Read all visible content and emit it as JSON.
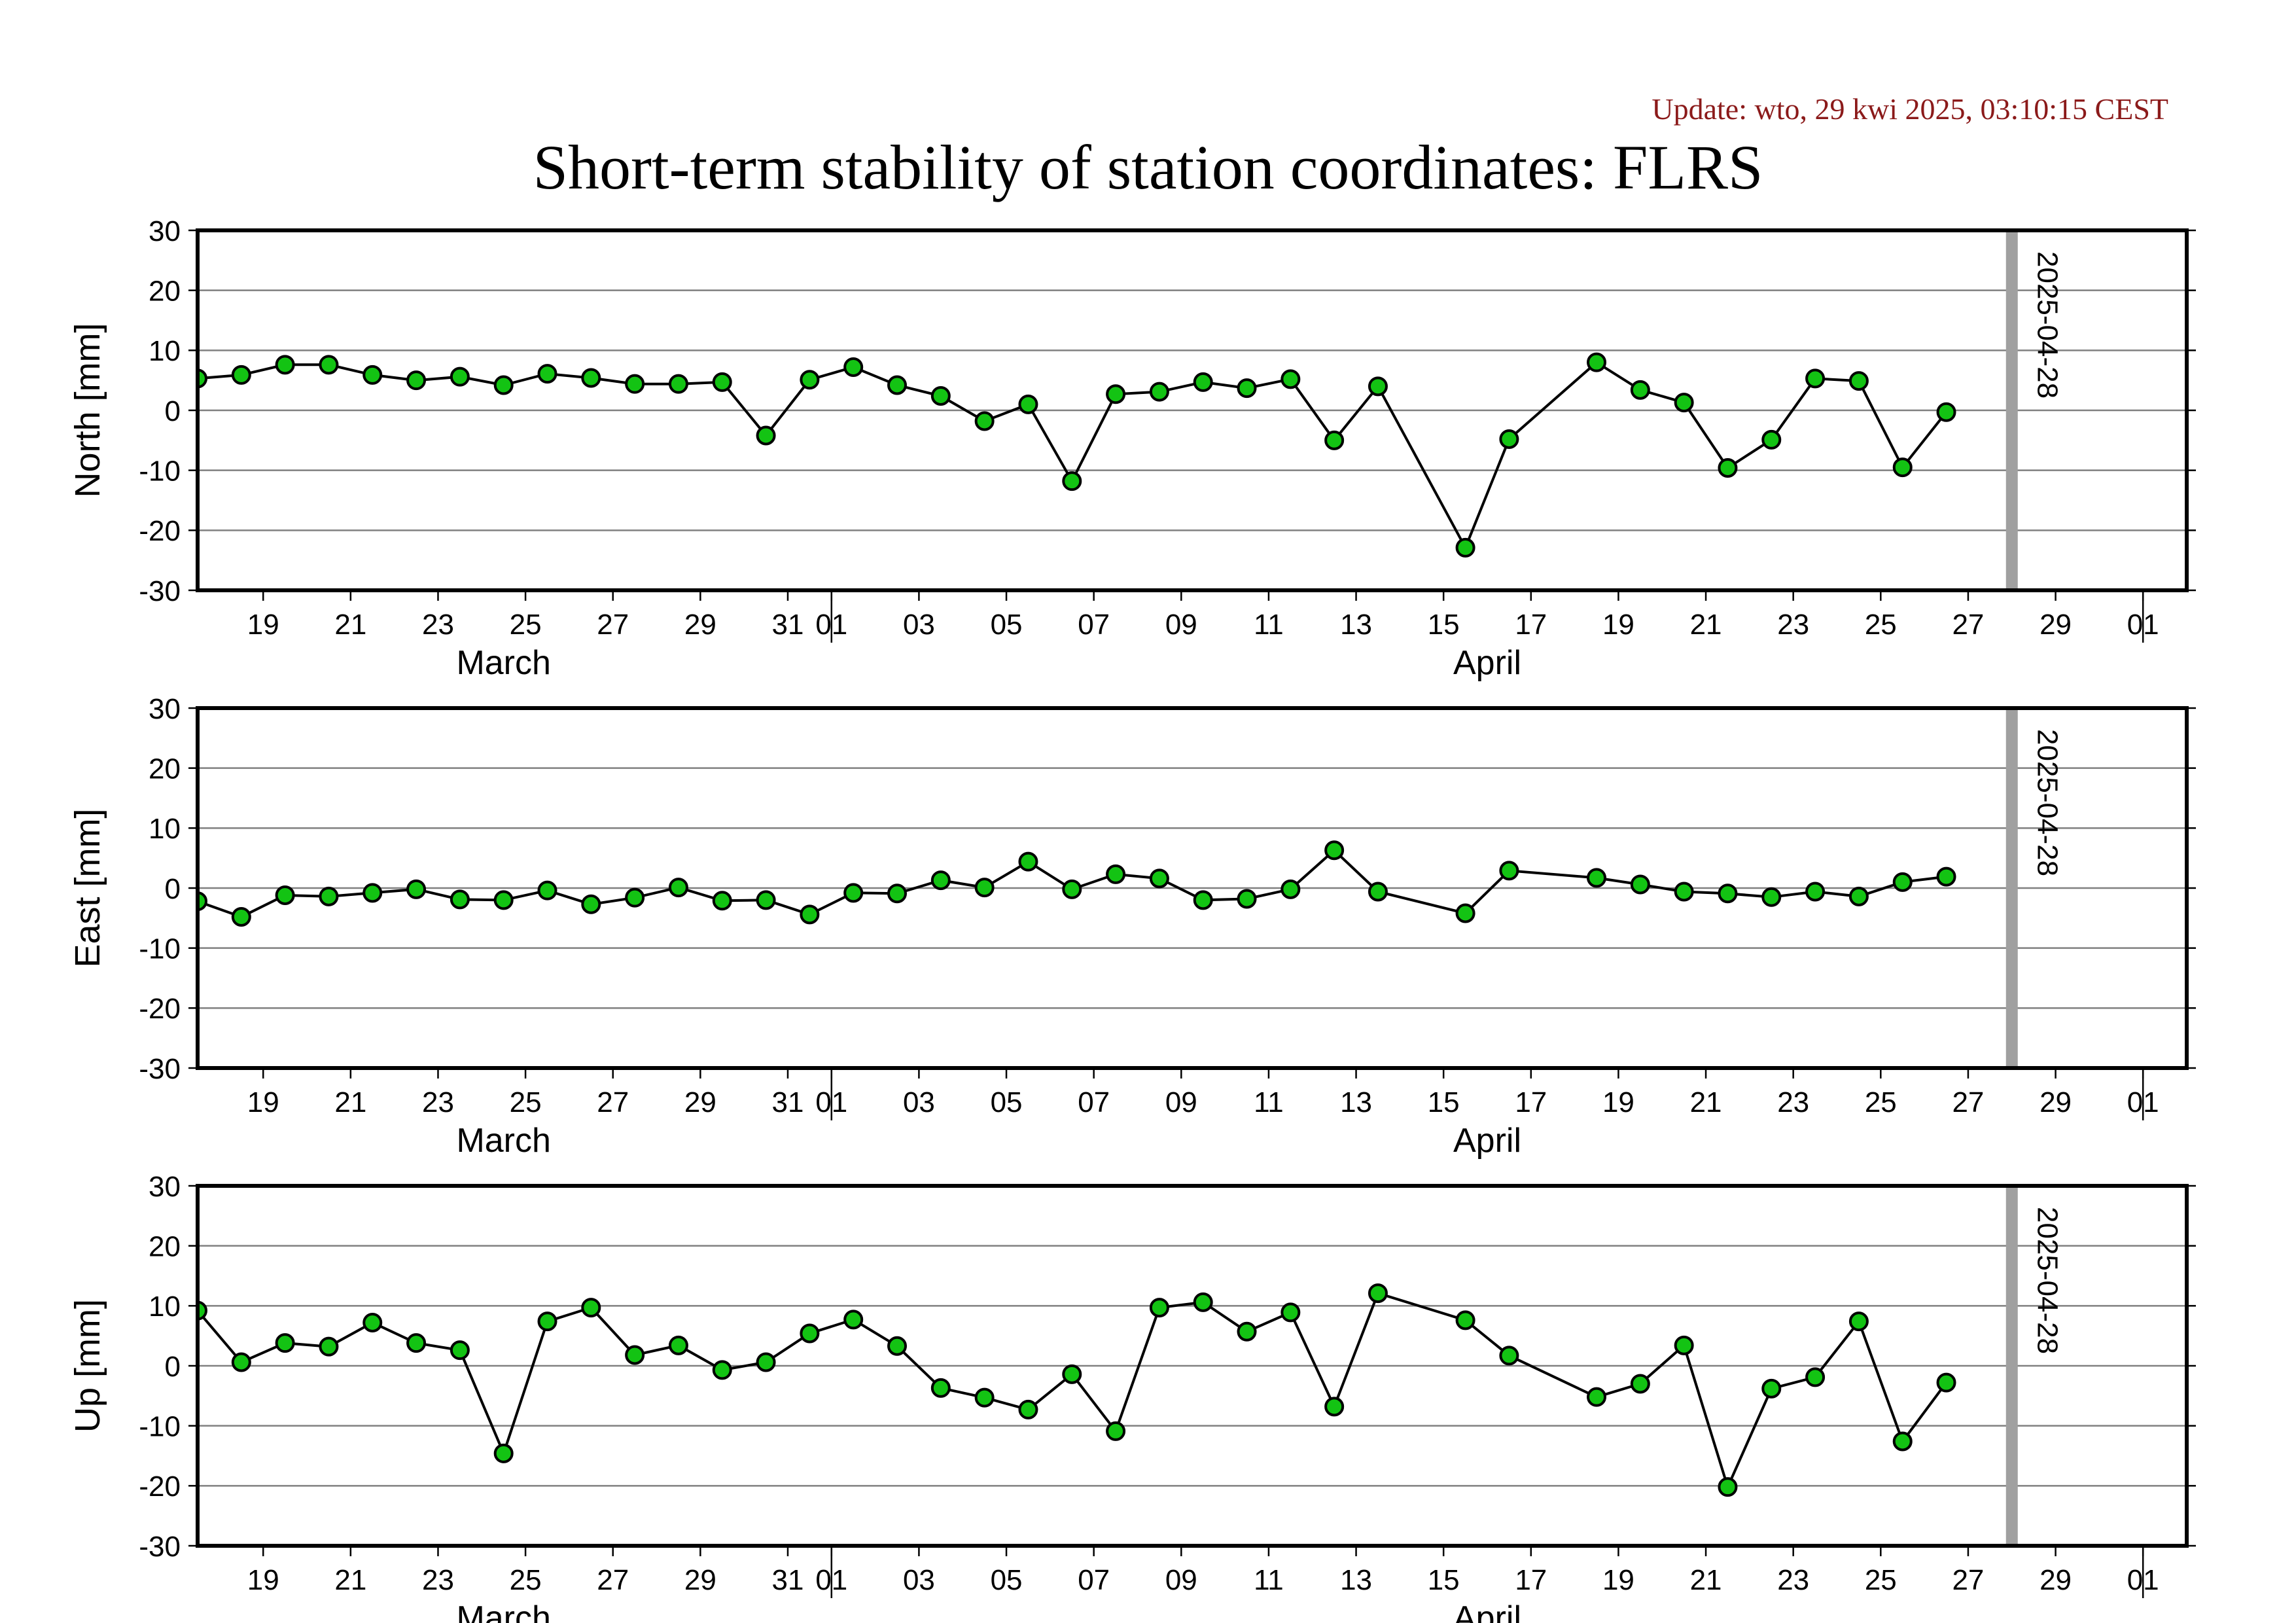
{
  "header": {
    "update": "Update: wto, 29 kwi 2025, 03:10:15 CEST",
    "title": "Short-term stability of station coordinates: FLRS"
  },
  "colors": {
    "update_text": "#8b1a1a",
    "marker_fill": "#13c313",
    "marker_stroke": "#000000",
    "line": "#000000",
    "grid": "#808080",
    "frame": "#000000",
    "reference_line": "#a0a0a0"
  },
  "chart_data": [
    {
      "type": "line",
      "ylabel": "North [mm]",
      "ylim": [
        -30,
        30
      ],
      "yticks": [
        -30,
        -20,
        -10,
        0,
        10,
        20,
        30
      ],
      "xlim": [
        "2025-03-17T12:00",
        "2025-05-02"
      ],
      "x_tick_dates": [
        "2025-03-19",
        "2025-03-21",
        "2025-03-23",
        "2025-03-25",
        "2025-03-27",
        "2025-03-29",
        "2025-03-31",
        "2025-04-01",
        "2025-04-03",
        "2025-04-05",
        "2025-04-07",
        "2025-04-09",
        "2025-04-11",
        "2025-04-13",
        "2025-04-15",
        "2025-04-17",
        "2025-04-19",
        "2025-04-21",
        "2025-04-23",
        "2025-04-25",
        "2025-04-27",
        "2025-04-29",
        "2025-05-01"
      ],
      "x_tick_labels": [
        "19",
        "21",
        "23",
        "25",
        "27",
        "29",
        "31",
        "01",
        "03",
        "05",
        "07",
        "09",
        "11",
        "13",
        "15",
        "17",
        "19",
        "21",
        "23",
        "25",
        "27",
        "29",
        "01"
      ],
      "month_labels": [
        {
          "date": "2025-03-24T12:00",
          "text": "March"
        },
        {
          "date": "2025-04-16",
          "text": "April"
        }
      ],
      "month_boundaries": [
        "2025-04-01",
        "2025-05-01"
      ],
      "reference_line": {
        "date": "2025-04-28",
        "label": "2025-04-28"
      },
      "grid": true,
      "series": [
        {
          "x": [
            "2025-03-17T12:00",
            "2025-03-18T12:00",
            "2025-03-19T12:00",
            "2025-03-20T12:00",
            "2025-03-21T12:00",
            "2025-03-22T12:00",
            "2025-03-23T12:00",
            "2025-03-24T12:00",
            "2025-03-25T12:00",
            "2025-03-26T12:00",
            "2025-03-27T12:00",
            "2025-03-28T12:00",
            "2025-03-29T12:00",
            "2025-03-30T12:00",
            "2025-03-31T12:00",
            "2025-04-01T12:00",
            "2025-04-02T12:00",
            "2025-04-03T12:00",
            "2025-04-04T12:00",
            "2025-04-05T12:00",
            "2025-04-06T12:00",
            "2025-04-07T12:00",
            "2025-04-08T12:00",
            "2025-04-09T12:00",
            "2025-04-10T12:00",
            "2025-04-11T12:00",
            "2025-04-12T12:00",
            "2025-04-13T12:00",
            "2025-04-15T12:00",
            "2025-04-16T12:00",
            "2025-04-18T12:00",
            "2025-04-19T12:00",
            "2025-04-20T12:00",
            "2025-04-21T12:00",
            "2025-04-22T12:00",
            "2025-04-23T12:00",
            "2025-04-24T12:00",
            "2025-04-25T12:00",
            "2025-04-26T12:00"
          ],
          "y": [
            5.3,
            5.9,
            7.6,
            7.6,
            5.9,
            5.0,
            5.6,
            4.2,
            6.1,
            5.4,
            4.4,
            4.4,
            4.7,
            -4.2,
            5.1,
            7.2,
            4.2,
            2.4,
            -1.8,
            1.0,
            -11.8,
            2.7,
            3.1,
            4.7,
            3.7,
            5.2,
            -5.0,
            4.0,
            -22.9,
            -4.8,
            8.0,
            3.4,
            1.3,
            -9.6,
            -4.9,
            5.3,
            4.9,
            -9.5,
            -0.3
          ]
        }
      ]
    },
    {
      "type": "line",
      "ylabel": "East [mm]",
      "ylim": [
        -30,
        30
      ],
      "yticks": [
        -30,
        -20,
        -10,
        0,
        10,
        20,
        30
      ],
      "xlim": [
        "2025-03-17T12:00",
        "2025-05-02"
      ],
      "x_tick_dates": [
        "2025-03-19",
        "2025-03-21",
        "2025-03-23",
        "2025-03-25",
        "2025-03-27",
        "2025-03-29",
        "2025-03-31",
        "2025-04-01",
        "2025-04-03",
        "2025-04-05",
        "2025-04-07",
        "2025-04-09",
        "2025-04-11",
        "2025-04-13",
        "2025-04-15",
        "2025-04-17",
        "2025-04-19",
        "2025-04-21",
        "2025-04-23",
        "2025-04-25",
        "2025-04-27",
        "2025-04-29",
        "2025-05-01"
      ],
      "x_tick_labels": [
        "19",
        "21",
        "23",
        "25",
        "27",
        "29",
        "31",
        "01",
        "03",
        "05",
        "07",
        "09",
        "11",
        "13",
        "15",
        "17",
        "19",
        "21",
        "23",
        "25",
        "27",
        "29",
        "01"
      ],
      "month_labels": [
        {
          "date": "2025-03-24T12:00",
          "text": "March"
        },
        {
          "date": "2025-04-16",
          "text": "April"
        }
      ],
      "month_boundaries": [
        "2025-04-01",
        "2025-05-01"
      ],
      "reference_line": {
        "date": "2025-04-28",
        "label": "2025-04-28"
      },
      "grid": true,
      "series": [
        {
          "x": [
            "2025-03-17T12:00",
            "2025-03-18T12:00",
            "2025-03-19T12:00",
            "2025-03-20T12:00",
            "2025-03-21T12:00",
            "2025-03-22T12:00",
            "2025-03-23T12:00",
            "2025-03-24T12:00",
            "2025-03-25T12:00",
            "2025-03-26T12:00",
            "2025-03-27T12:00",
            "2025-03-28T12:00",
            "2025-03-29T12:00",
            "2025-03-30T12:00",
            "2025-03-31T12:00",
            "2025-04-01T12:00",
            "2025-04-02T12:00",
            "2025-04-03T12:00",
            "2025-04-04T12:00",
            "2025-04-05T12:00",
            "2025-04-06T12:00",
            "2025-04-07T12:00",
            "2025-04-08T12:00",
            "2025-04-09T12:00",
            "2025-04-10T12:00",
            "2025-04-11T12:00",
            "2025-04-12T12:00",
            "2025-04-13T12:00",
            "2025-04-15T12:00",
            "2025-04-16T12:00",
            "2025-04-18T12:00",
            "2025-04-19T12:00",
            "2025-04-20T12:00",
            "2025-04-21T12:00",
            "2025-04-22T12:00",
            "2025-04-23T12:00",
            "2025-04-24T12:00",
            "2025-04-25T12:00",
            "2025-04-26T12:00"
          ],
          "y": [
            -2.2,
            -4.8,
            -1.2,
            -1.4,
            -0.8,
            -0.2,
            -1.9,
            -2.0,
            -0.4,
            -2.7,
            -1.6,
            0.1,
            -2.1,
            -2.0,
            -4.4,
            -0.8,
            -0.9,
            1.3,
            0.1,
            4.4,
            -0.2,
            2.3,
            1.6,
            -2.0,
            -1.8,
            -0.2,
            6.3,
            -0.6,
            -4.2,
            2.9,
            1.7,
            0.6,
            -0.6,
            -0.9,
            -1.5,
            -0.6,
            -1.4,
            1.0,
            1.9
          ]
        }
      ]
    },
    {
      "type": "line",
      "ylabel": "Up [mm]",
      "ylim": [
        -30,
        30
      ],
      "yticks": [
        -30,
        -20,
        -10,
        0,
        10,
        20,
        30
      ],
      "xlim": [
        "2025-03-17T12:00",
        "2025-05-02"
      ],
      "x_tick_dates": [
        "2025-03-19",
        "2025-03-21",
        "2025-03-23",
        "2025-03-25",
        "2025-03-27",
        "2025-03-29",
        "2025-03-31",
        "2025-04-01",
        "2025-04-03",
        "2025-04-05",
        "2025-04-07",
        "2025-04-09",
        "2025-04-11",
        "2025-04-13",
        "2025-04-15",
        "2025-04-17",
        "2025-04-19",
        "2025-04-21",
        "2025-04-23",
        "2025-04-25",
        "2025-04-27",
        "2025-04-29",
        "2025-05-01"
      ],
      "x_tick_labels": [
        "19",
        "21",
        "23",
        "25",
        "27",
        "29",
        "31",
        "01",
        "03",
        "05",
        "07",
        "09",
        "11",
        "13",
        "15",
        "17",
        "19",
        "21",
        "23",
        "25",
        "27",
        "29",
        "01"
      ],
      "month_labels": [
        {
          "date": "2025-03-24T12:00",
          "text": "March"
        },
        {
          "date": "2025-04-16",
          "text": "April"
        }
      ],
      "month_boundaries": [
        "2025-04-01",
        "2025-05-01"
      ],
      "reference_line": {
        "date": "2025-04-28",
        "label": "2025-04-28"
      },
      "grid": true,
      "series": [
        {
          "x": [
            "2025-03-17T12:00",
            "2025-03-18T12:00",
            "2025-03-19T12:00",
            "2025-03-20T12:00",
            "2025-03-21T12:00",
            "2025-03-22T12:00",
            "2025-03-23T12:00",
            "2025-03-24T12:00",
            "2025-03-25T12:00",
            "2025-03-26T12:00",
            "2025-03-27T12:00",
            "2025-03-28T12:00",
            "2025-03-29T12:00",
            "2025-03-30T12:00",
            "2025-03-31T12:00",
            "2025-04-01T12:00",
            "2025-04-02T12:00",
            "2025-04-03T12:00",
            "2025-04-04T12:00",
            "2025-04-05T12:00",
            "2025-04-06T12:00",
            "2025-04-07T12:00",
            "2025-04-08T12:00",
            "2025-04-09T12:00",
            "2025-04-10T12:00",
            "2025-04-11T12:00",
            "2025-04-12T12:00",
            "2025-04-13T12:00",
            "2025-04-15T12:00",
            "2025-04-16T12:00",
            "2025-04-18T12:00",
            "2025-04-19T12:00",
            "2025-04-20T12:00",
            "2025-04-21T12:00",
            "2025-04-22T12:00",
            "2025-04-23T12:00",
            "2025-04-24T12:00",
            "2025-04-25T12:00",
            "2025-04-26T12:00"
          ],
          "y": [
            9.2,
            0.6,
            3.8,
            3.2,
            7.2,
            3.8,
            2.6,
            -14.6,
            7.4,
            9.7,
            1.8,
            3.4,
            -0.7,
            0.6,
            5.4,
            7.7,
            3.3,
            -3.7,
            -5.3,
            -7.3,
            -1.4,
            -10.9,
            9.7,
            10.6,
            5.7,
            8.9,
            -6.8,
            12.1,
            7.6,
            1.7,
            -5.2,
            -3.0,
            3.4,
            -20.2,
            -3.8,
            -1.9,
            7.4,
            -12.6,
            -2.8
          ]
        }
      ]
    }
  ]
}
